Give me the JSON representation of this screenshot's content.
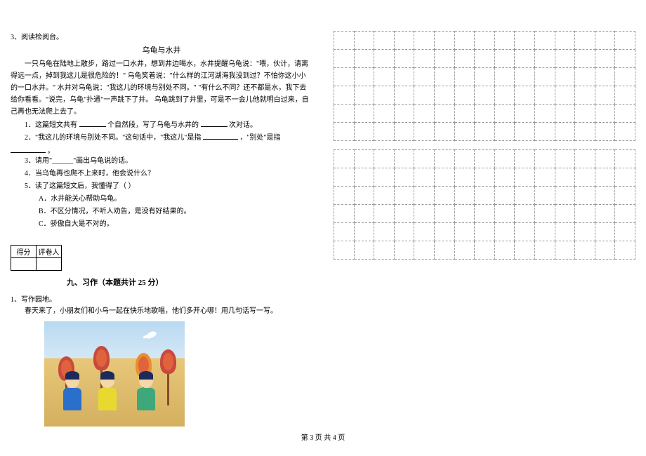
{
  "reading": {
    "number": "3、",
    "heading": "阅读检阅台。",
    "title": "乌龟与水井",
    "p1": "一只乌龟在陆地上散步，路过一口水井，想到井边喝水，水井提醒乌龟说：\"喂，伙计，请离得远一点，掉到我这儿是很危险的！\"  乌龟笑着说：\"什么样的江河湖海我没到过？不怕你这小小的一口水井。\"  水井对乌龟说：\"我这儿的环境与别处不同。\"  \"有什么不同？还不都是水，我下去给你看看。\"说完，乌龟\"扑通\"一声跳下了井。    乌龟跳到了井里，可是不一会儿他就明白过来，自己再也无法爬上去了。",
    "q1a": "1．这篇短文共有",
    "q1b": "个自然段，写了乌龟与水井的",
    "q1c": "次对话。",
    "q2a": "2．\"我这儿的环境与别处不同。\"这句话中，\"我这儿\"是指",
    "q2b": "，\"别处\"是指",
    "q2c": "。",
    "q3": "3．请用\"______\"画出乌龟说的话。",
    "q4": "4．当乌龟再也爬不上来时，他会说什么？",
    "q5": "5．读了这篇短文后，我懂得了（    ）",
    "opta": "A．水井能关心帮助乌龟。",
    "optb": "B．不区分情况，不听人劝告，是没有好结果的。",
    "optc": "C．骄傲自大是不对的。"
  },
  "score": {
    "h1": "得分",
    "h2": "评卷人"
  },
  "composition": {
    "section": "九、习作（本题共计 25 分）",
    "number": "1、",
    "heading": "写作园地。",
    "prompt": "春天来了，小朋友们和小鸟一起在快乐地歌唱，他们多开心哪！用几句话写一写。"
  },
  "grids": {
    "rows": 6,
    "cols": 15,
    "count": 2
  },
  "footer": "第 3 页  共 4 页"
}
